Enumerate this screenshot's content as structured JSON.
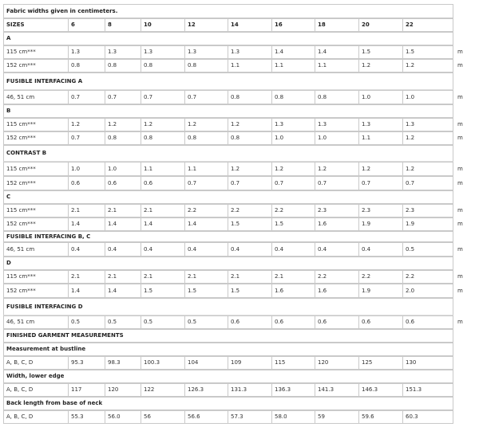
{
  "note": "Fabric widths given in centimeters.",
  "unit": "m",
  "sizes_header": "SIZES",
  "sizes": [
    "6",
    "8",
    "10",
    "12",
    "14",
    "16",
    "18",
    "20",
    "22"
  ],
  "rows": [
    {
      "kind": "note",
      "label": "Fabric widths given in centimeters."
    },
    {
      "kind": "header",
      "label": "SIZES",
      "values": [
        "6",
        "8",
        "10",
        "12",
        "14",
        "16",
        "18",
        "20",
        "22"
      ]
    },
    {
      "kind": "section",
      "label": "A"
    },
    {
      "kind": "data",
      "label": "115 cm***",
      "values": [
        "1.3",
        "1.3",
        "1.3",
        "1.3",
        "1.3",
        "1.4",
        "1.4",
        "1.5",
        "1.5"
      ],
      "unit": "m"
    },
    {
      "kind": "data",
      "label": "152 cm***",
      "values": [
        "0.8",
        "0.8",
        "0.8",
        "0.8",
        "1.1",
        "1.1",
        "1.1",
        "1.2",
        "1.2"
      ],
      "unit": "m"
    },
    {
      "kind": "section",
      "label": "FUSIBLE INTERFACING A"
    },
    {
      "kind": "data",
      "label": "46, 51 cm",
      "values": [
        "0.7",
        "0.7",
        "0.7",
        "0.7",
        "0.8",
        "0.8",
        "0.8",
        "1.0",
        "1.0"
      ],
      "unit": "m"
    },
    {
      "kind": "section",
      "label": "B"
    },
    {
      "kind": "data",
      "label": "115 cm***",
      "values": [
        "1.2",
        "1.2",
        "1.2",
        "1.2",
        "1.2",
        "1.3",
        "1.3",
        "1.3",
        "1.3"
      ],
      "unit": "m"
    },
    {
      "kind": "data",
      "label": "152 cm***",
      "values": [
        "0.7",
        "0.8",
        "0.8",
        "0.8",
        "0.8",
        "1.0",
        "1.0",
        "1.1",
        "1.2"
      ],
      "unit": "m"
    },
    {
      "kind": "section",
      "label": "CONTRAST B"
    },
    {
      "kind": "data",
      "label": "115 cm***",
      "values": [
        "1.0",
        "1.0",
        "1.1",
        "1.1",
        "1.2",
        "1.2",
        "1.2",
        "1.2",
        "1.2"
      ],
      "unit": "m"
    },
    {
      "kind": "data",
      "label": "152 cm***",
      "values": [
        "0.6",
        "0.6",
        "0.6",
        "0.7",
        "0.7",
        "0.7",
        "0.7",
        "0.7",
        "0.7"
      ],
      "unit": "m"
    },
    {
      "kind": "section",
      "label": "C"
    },
    {
      "kind": "data",
      "label": "115 cm***",
      "values": [
        "2.1",
        "2.1",
        "2.1",
        "2.2",
        "2.2",
        "2.2",
        "2.3",
        "2.3",
        "2.3"
      ],
      "unit": "m"
    },
    {
      "kind": "data",
      "label": "152 cm***",
      "values": [
        "1.4",
        "1.4",
        "1.4",
        "1.4",
        "1.5",
        "1.5",
        "1.6",
        "1.9",
        "1.9"
      ],
      "unit": "m"
    },
    {
      "kind": "section",
      "label": "FUSIBLE INTERFACING B, C"
    },
    {
      "kind": "data",
      "label": "46, 51 cm",
      "values": [
        "0.4",
        "0.4",
        "0.4",
        "0.4",
        "0.4",
        "0.4",
        "0.4",
        "0.4",
        "0.5"
      ],
      "unit": "m"
    },
    {
      "kind": "section",
      "label": "D"
    },
    {
      "kind": "data",
      "label": "115 cm***",
      "values": [
        "2.1",
        "2.1",
        "2.1",
        "2.1",
        "2.1",
        "2.1",
        "2.2",
        "2.2",
        "2.2"
      ],
      "unit": "m"
    },
    {
      "kind": "data",
      "label": "152 cm***",
      "values": [
        "1.4",
        "1.4",
        "1.5",
        "1.5",
        "1.5",
        "1.6",
        "1.6",
        "1.9",
        "2.0"
      ],
      "unit": "m"
    },
    {
      "kind": "section",
      "label": "FUSIBLE INTERFACING D"
    },
    {
      "kind": "data",
      "label": "46, 51 cm",
      "values": [
        "0.5",
        "0.5",
        "0.5",
        "0.5",
        "0.6",
        "0.6",
        "0.6",
        "0.6",
        "0.6"
      ],
      "unit": "m"
    },
    {
      "kind": "section",
      "label": "FINISHED GARMENT MEASUREMENTS"
    },
    {
      "kind": "subsection",
      "label": "Measurement at bustline"
    },
    {
      "kind": "data",
      "label": "A, B, C, D",
      "values": [
        "95.3",
        "98.3",
        "100.3",
        "104",
        "109",
        "115",
        "120",
        "125",
        "130"
      ]
    },
    {
      "kind": "subsection",
      "label": "Width, lower edge"
    },
    {
      "kind": "data",
      "label": "A, B, C, D",
      "values": [
        "117",
        "120",
        "122",
        "126.3",
        "131.3",
        "136.3",
        "141.3",
        "146.3",
        "151.3"
      ]
    },
    {
      "kind": "subsection",
      "label": "Back length from base of neck"
    },
    {
      "kind": "data",
      "label": "A, B, C, D",
      "values": [
        "55.3",
        "56.0",
        "56",
        "56.6",
        "57.3",
        "58.0",
        "59",
        "59.6",
        "60.3"
      ]
    }
  ]
}
